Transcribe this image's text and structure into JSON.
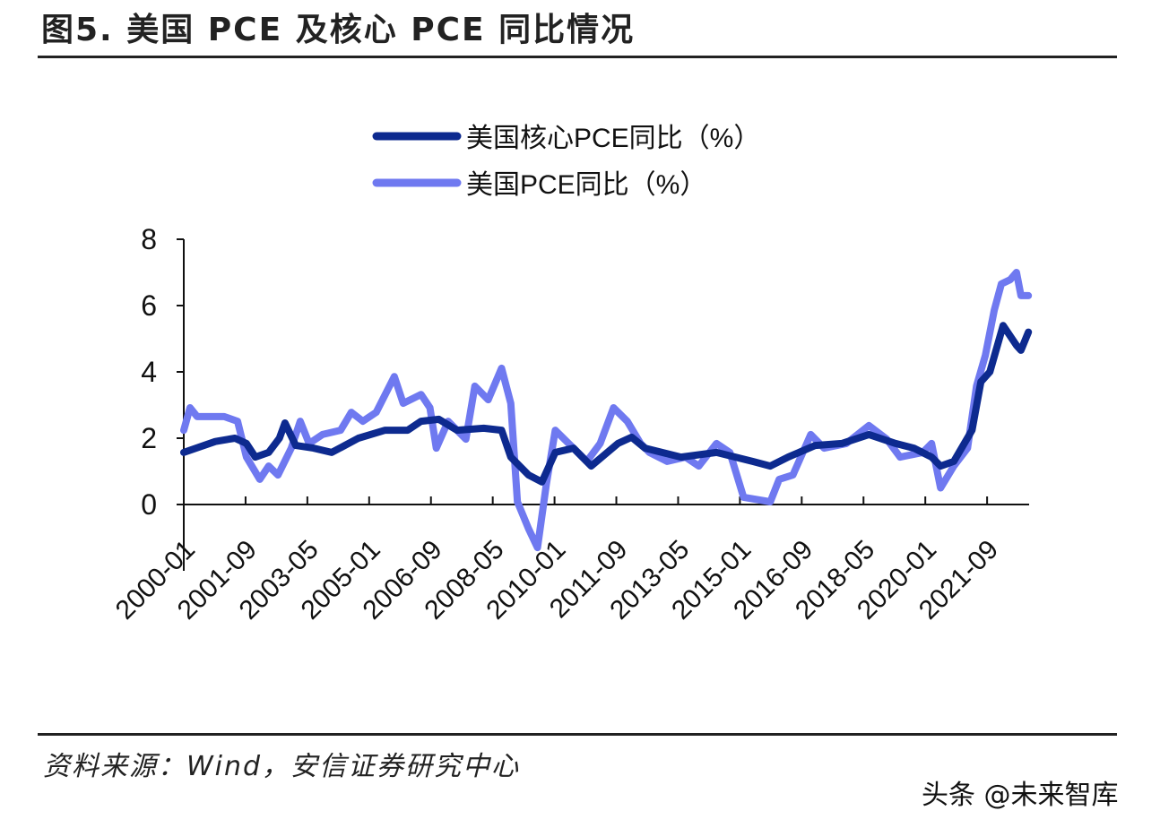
{
  "title": "图5. 美国 PCE 及核心 PCE 同比情况",
  "source": "资料来源：Wind，安信证券研究中心",
  "watermark": "头条 @未来智库",
  "colors": {
    "core": "#0d2a8f",
    "headline": "#6f79f0",
    "axis": "#111111"
  },
  "chart_data": {
    "type": "line",
    "title": "",
    "xlabel": "",
    "ylabel": "",
    "ylim": [
      -2,
      8
    ],
    "yticks": [
      0,
      2,
      4,
      6,
      8
    ],
    "xlim": [
      2000.0,
      2022.8
    ],
    "xtick_labels": [
      "2000-01",
      "2001-09",
      "2003-05",
      "2005-01",
      "2006-09",
      "2008-05",
      "2010-01",
      "2011-09",
      "2013-05",
      "2015-01",
      "2016-09",
      "2018-05",
      "2020-01",
      "2021-09"
    ],
    "xtick_step_months": 20,
    "grid": false,
    "legend_position": "top-center",
    "series": [
      {
        "name": "美国核心PCE同比（%）",
        "key": "core",
        "x": [
          2000.0,
          2000.85,
          2001.38,
          2001.69,
          2001.93,
          2002.29,
          2002.58,
          2002.73,
          2003.02,
          2003.5,
          2003.99,
          2004.71,
          2005.43,
          2006.04,
          2006.4,
          2006.88,
          2007.37,
          2008.09,
          2008.57,
          2008.82,
          2009.3,
          2009.66,
          2010.02,
          2010.51,
          2010.99,
          2011.71,
          2012.08,
          2012.44,
          2013.41,
          2014.37,
          2015.34,
          2015.82,
          2016.3,
          2017.03,
          2017.75,
          2018.48,
          2019.2,
          2019.69,
          2020.17,
          2020.41,
          2020.77,
          2021.26,
          2021.5,
          2021.74,
          2022.1,
          2022.46,
          2022.58,
          2022.78
        ],
        "y": [
          1.57,
          1.9,
          2.0,
          1.84,
          1.43,
          1.57,
          2.0,
          2.46,
          1.78,
          1.7,
          1.57,
          2.0,
          2.24,
          2.24,
          2.51,
          2.57,
          2.24,
          2.3,
          2.24,
          1.43,
          0.89,
          0.68,
          1.57,
          1.7,
          1.16,
          1.84,
          2.03,
          1.7,
          1.43,
          1.57,
          1.3,
          1.16,
          1.43,
          1.78,
          1.84,
          2.11,
          1.84,
          1.7,
          1.43,
          1.16,
          1.3,
          2.24,
          3.7,
          4.0,
          5.4,
          4.8,
          4.65,
          5.2
        ]
      },
      {
        "name": "美国PCE同比（%）",
        "key": "headline",
        "x": [
          2000.0,
          2000.17,
          2000.36,
          2001.09,
          2001.45,
          2001.69,
          2002.05,
          2002.29,
          2002.54,
          2002.9,
          2003.14,
          2003.38,
          2003.74,
          2004.23,
          2004.52,
          2004.83,
          2005.19,
          2005.68,
          2005.92,
          2006.4,
          2006.64,
          2006.81,
          2007.13,
          2007.61,
          2007.85,
          2008.21,
          2008.57,
          2008.82,
          2009.0,
          2009.3,
          2009.54,
          2009.78,
          2010.02,
          2010.51,
          2010.87,
          2011.23,
          2011.59,
          2011.96,
          2012.32,
          2012.56,
          2013.04,
          2013.53,
          2013.89,
          2014.37,
          2014.73,
          2015.1,
          2015.82,
          2016.06,
          2016.43,
          2016.91,
          2017.27,
          2017.87,
          2018.48,
          2018.96,
          2019.32,
          2019.93,
          2020.17,
          2020.41,
          2020.77,
          2021.14,
          2021.38,
          2021.62,
          2021.86,
          2022.05,
          2022.29,
          2022.46,
          2022.58,
          2022.78
        ],
        "y": [
          2.24,
          2.92,
          2.65,
          2.65,
          2.51,
          1.43,
          0.76,
          1.16,
          0.89,
          1.7,
          2.51,
          1.84,
          2.11,
          2.24,
          2.78,
          2.51,
          2.78,
          3.86,
          3.05,
          3.32,
          2.92,
          1.7,
          2.51,
          1.97,
          3.57,
          3.16,
          4.11,
          3.05,
          0.08,
          -0.73,
          -1.3,
          0.62,
          2.24,
          1.7,
          1.3,
          1.84,
          2.92,
          2.51,
          1.84,
          1.57,
          1.3,
          1.43,
          1.16,
          1.84,
          1.57,
          0.22,
          0.08,
          0.76,
          0.89,
          2.11,
          1.7,
          1.84,
          2.38,
          1.97,
          1.43,
          1.57,
          1.84,
          0.5,
          1.16,
          1.7,
          3.57,
          4.5,
          5.86,
          6.65,
          6.78,
          7.0,
          6.3,
          6.3
        ]
      }
    ]
  }
}
